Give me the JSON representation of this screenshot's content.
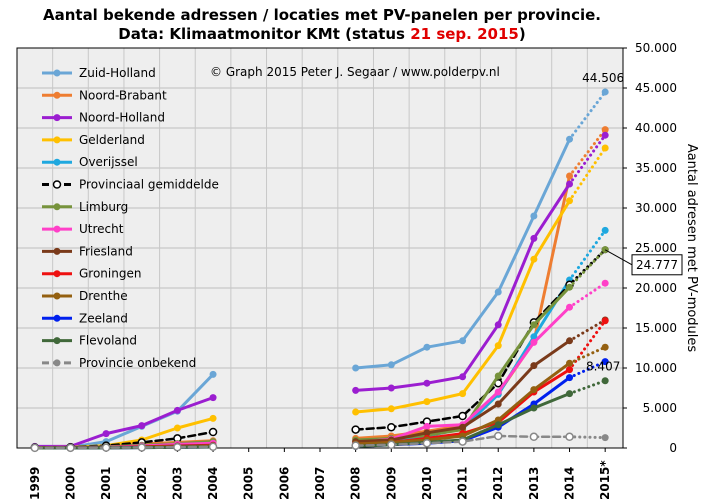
{
  "chart_data": {
    "type": "line",
    "title_line1": "Aantal bekende adressen / locaties met PV-panelen per provincie.",
    "title_line2_prefix": "Data: Klimaatmonitor KMt (status ",
    "title_line2_date": "21 sep. 2015",
    "title_line2_suffix": ")",
    "copyright": "© Graph 2015 Peter J. Segaar / www.polderpv.nl",
    "ylabel": "Aantal adresen met PV-modules",
    "ylim": [
      0,
      50000
    ],
    "yticks": [
      "0",
      "5.000",
      "10.000",
      "15.000",
      "20.000",
      "25.000",
      "30.000",
      "35.000",
      "40.000",
      "45.000",
      "50.000"
    ],
    "categories": [
      "1999",
      "2000",
      "2001",
      "2002",
      "2003",
      "2004",
      "2005",
      "2006",
      "2007",
      "2008",
      "2009",
      "2010",
      "2011",
      "2012",
      "2013",
      "2014",
      "2015*"
    ],
    "grid": true,
    "legend_position": "top-left",
    "annotations": [
      {
        "text": "44.506",
        "category": "2015*",
        "value": 44506,
        "color": "#6ab0dc"
      },
      {
        "text": "24.777",
        "category": "2015*",
        "value": 24777,
        "color": "#000000",
        "boxed": true
      },
      {
        "text": "8.407",
        "category": "2015*",
        "value": 8407,
        "color": "#40683a"
      }
    ],
    "series": [
      {
        "name": "Zuid-Holland",
        "color": "#6aa6d6",
        "dashed": false,
        "label_color": "#000000",
        "values": [
          100,
          100,
          800,
          2700,
          4600,
          9200,
          null,
          null,
          null,
          10000,
          10400,
          12600,
          13400,
          19500,
          29000,
          38600,
          44506
        ]
      },
      {
        "name": "Noord-Brabant",
        "color": "#ee7d31",
        "dashed": false,
        "label_color": "#000000",
        "values": [
          50,
          100,
          200,
          500,
          700,
          900,
          null,
          null,
          null,
          1200,
          1500,
          2100,
          2800,
          6800,
          13300,
          34000,
          39800
        ]
      },
      {
        "name": "Noord-Holland",
        "color": "#9b1ed0",
        "dashed": false,
        "label_color": "#000000",
        "values": [
          200,
          200,
          1800,
          2800,
          4700,
          6300,
          null,
          null,
          null,
          7200,
          7500,
          8100,
          8900,
          15400,
          26200,
          33000,
          39100
        ]
      },
      {
        "name": "Gelderland",
        "color": "#ffc000",
        "dashed": false,
        "label_color": "#000000",
        "values": [
          50,
          100,
          300,
          1000,
          2500,
          3700,
          null,
          null,
          null,
          4500,
          4900,
          5800,
          6800,
          12800,
          23600,
          30900,
          37500
        ]
      },
      {
        "name": "Overijssel",
        "color": "#1fa8df",
        "dashed": false,
        "label_color": "#000000",
        "values": [
          20,
          50,
          100,
          300,
          500,
          700,
          null,
          null,
          null,
          700,
          1000,
          1500,
          2400,
          6700,
          13900,
          21000,
          27200
        ]
      },
      {
        "name": "Provinciaal gemiddelde",
        "color": "#000000",
        "dashed": true,
        "label_color": "#000000",
        "values": [
          60,
          100,
          300,
          700,
          1200,
          2000,
          null,
          null,
          null,
          2300,
          2600,
          3300,
          4000,
          8100,
          15700,
          20400,
          24777
        ]
      },
      {
        "name": "Limburg",
        "color": "#77933c",
        "dashed": false,
        "label_color": "#000000",
        "values": [
          30,
          60,
          150,
          350,
          550,
          800,
          null,
          null,
          null,
          1000,
          1200,
          1600,
          2300,
          9000,
          15400,
          20100,
          24800
        ]
      },
      {
        "name": "Utrecht",
        "color": "#ff40c8",
        "dashed": false,
        "label_color": "#000000",
        "values": [
          20,
          50,
          100,
          250,
          450,
          600,
          null,
          null,
          null,
          700,
          1100,
          2700,
          2900,
          7000,
          13200,
          17600,
          20600
        ]
      },
      {
        "name": "Friesland",
        "color": "#7a3a1a",
        "dashed": false,
        "label_color": "#000000",
        "values": [
          10,
          30,
          60,
          150,
          250,
          350,
          null,
          null,
          null,
          800,
          1000,
          1900,
          2600,
          5500,
          10300,
          13400,
          16000
        ]
      },
      {
        "name": "Groningen",
        "color": "#ee1010",
        "dashed": false,
        "label_color": "#e00000",
        "values": [
          10,
          20,
          50,
          120,
          200,
          300,
          null,
          null,
          null,
          500,
          700,
          1200,
          1800,
          3200,
          7000,
          9800,
          15900
        ]
      },
      {
        "name": "Drenthe",
        "color": "#946010",
        "dashed": false,
        "label_color": "#000000",
        "values": [
          10,
          20,
          40,
          100,
          160,
          250,
          null,
          null,
          null,
          500,
          700,
          1000,
          1500,
          3500,
          7300,
          10600,
          12600
        ]
      },
      {
        "name": "Zeeland",
        "color": "#0020ee",
        "dashed": false,
        "label_color": "#000000",
        "values": [
          5,
          10,
          20,
          50,
          80,
          120,
          null,
          null,
          null,
          200,
          400,
          600,
          900,
          2600,
          5500,
          8800,
          10800
        ]
      },
      {
        "name": "Flevoland",
        "color": "#40683a",
        "dashed": false,
        "label_color": "#000000",
        "values": [
          5,
          10,
          20,
          50,
          80,
          120,
          null,
          null,
          null,
          200,
          400,
          700,
          1000,
          2900,
          5000,
          6800,
          8407
        ]
      },
      {
        "name": "Provincie onbekend",
        "color": "#888888",
        "dashed": true,
        "label_color": "#000000",
        "values": [
          10,
          20,
          40,
          60,
          100,
          150,
          null,
          null,
          null,
          300,
          400,
          600,
          800,
          1500,
          1400,
          1400,
          1300
        ]
      }
    ]
  }
}
